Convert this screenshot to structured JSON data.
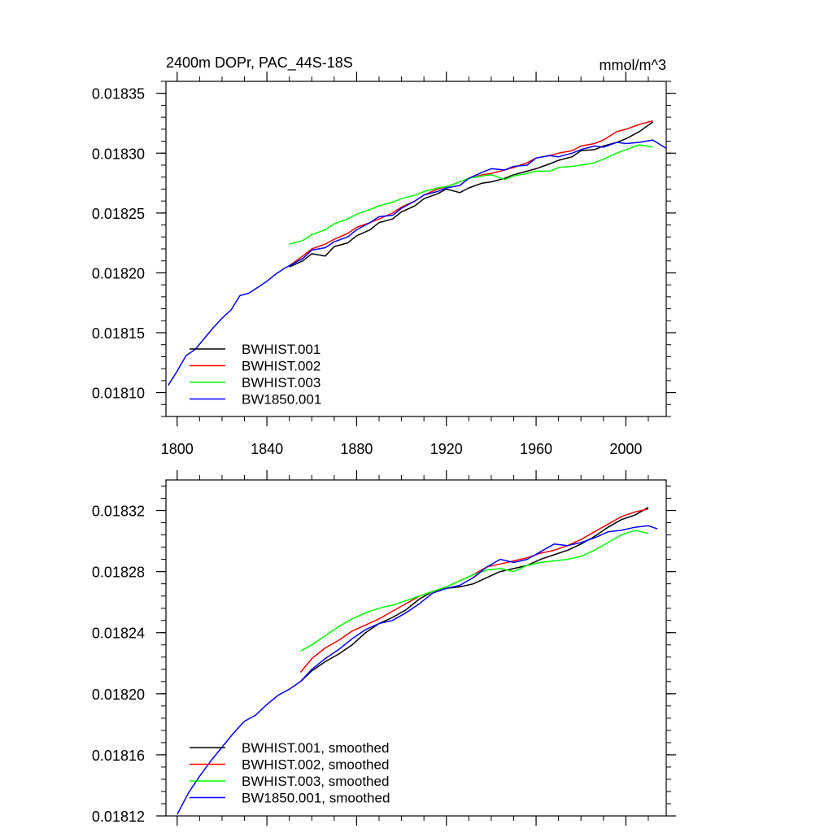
{
  "panels": {
    "top": {
      "title_left": "2400m DOPr, PAC_44S-18S",
      "title_right": "mmol/m^3"
    },
    "bottom": {}
  },
  "chart_data": [
    {
      "type": "line",
      "title": "2400m DOPr, PAC_44S-18S",
      "units": "mmol/m^3",
      "xlim": [
        1795,
        2018
      ],
      "ylim": [
        0.01808,
        0.01836
      ],
      "x_ticks": [
        1800,
        1840,
        1880,
        1920,
        1960,
        2000
      ],
      "x_tick_labels": [
        "1800",
        "1840",
        "1880",
        "1920",
        "1960",
        "2000"
      ],
      "y_ticks": [
        0.0181,
        0.01815,
        0.0182,
        0.01825,
        0.0183,
        0.01835
      ],
      "y_tick_labels": [
        "0.01810",
        "0.01815",
        "0.01820",
        "0.01825",
        "0.01830",
        "0.01835"
      ],
      "legend_position": "bottom-left",
      "series": [
        {
          "name": "BWHIST.001",
          "color": "#000000",
          "x": [
            1850,
            1856,
            1860,
            1866,
            1870,
            1876,
            1880,
            1886,
            1890,
            1896,
            1900,
            1906,
            1910,
            1916,
            1920,
            1926,
            1930,
            1936,
            1940,
            1946,
            1950,
            1956,
            1960,
            1966,
            1970,
            1976,
            1980,
            1986,
            1990,
            1996,
            2000,
            2006,
            2012
          ],
          "y": [
            0.018205,
            0.01821,
            0.018216,
            0.018214,
            0.018222,
            0.018225,
            0.018231,
            0.018236,
            0.018242,
            0.018245,
            0.018251,
            0.018256,
            0.018262,
            0.018266,
            0.01827,
            0.018267,
            0.018271,
            0.018275,
            0.018276,
            0.018279,
            0.018282,
            0.018285,
            0.018287,
            0.018291,
            0.018294,
            0.018297,
            0.018302,
            0.018303,
            0.018306,
            0.018309,
            0.018312,
            0.018318,
            0.018326
          ]
        },
        {
          "name": "BWHIST.002",
          "color": "#ff0000",
          "x": [
            1850,
            1856,
            1860,
            1866,
            1870,
            1876,
            1880,
            1886,
            1890,
            1896,
            1900,
            1906,
            1910,
            1916,
            1920,
            1926,
            1930,
            1936,
            1940,
            1946,
            1950,
            1956,
            1960,
            1966,
            1970,
            1976,
            1980,
            1986,
            1990,
            1996,
            2000,
            2006,
            2012
          ],
          "y": [
            0.018206,
            0.018214,
            0.01822,
            0.018224,
            0.018228,
            0.018233,
            0.018238,
            0.018242,
            0.018245,
            0.01825,
            0.018255,
            0.01826,
            0.018265,
            0.01827,
            0.018272,
            0.018276,
            0.018279,
            0.018282,
            0.018283,
            0.018286,
            0.018288,
            0.018292,
            0.018296,
            0.018298,
            0.0183,
            0.018302,
            0.018306,
            0.018308,
            0.018311,
            0.018318,
            0.01832,
            0.018324,
            0.018327
          ]
        },
        {
          "name": "BWHIST.003",
          "color": "#00ff00",
          "x": [
            1850,
            1856,
            1860,
            1866,
            1870,
            1876,
            1880,
            1886,
            1890,
            1896,
            1900,
            1906,
            1910,
            1916,
            1920,
            1926,
            1930,
            1936,
            1940,
            1946,
            1950,
            1956,
            1960,
            1966,
            1970,
            1976,
            1980,
            1986,
            1990,
            1996,
            2000,
            2006,
            2012
          ],
          "y": [
            0.018224,
            0.018227,
            0.018232,
            0.018236,
            0.018241,
            0.018245,
            0.018249,
            0.018253,
            0.018256,
            0.018259,
            0.018262,
            0.018265,
            0.018268,
            0.018271,
            0.018272,
            0.018276,
            0.018279,
            0.018281,
            0.018282,
            0.018278,
            0.018281,
            0.018283,
            0.018285,
            0.018285,
            0.018288,
            0.018289,
            0.01829,
            0.018292,
            0.018295,
            0.0183,
            0.018303,
            0.018307,
            0.018305
          ]
        },
        {
          "name": "BW1850.001",
          "color": "#0000ff",
          "x": [
            1796,
            1800,
            1804,
            1808,
            1812,
            1816,
            1820,
            1824,
            1828,
            1832,
            1836,
            1840,
            1844,
            1848,
            1852,
            1856,
            1860,
            1866,
            1870,
            1876,
            1880,
            1886,
            1890,
            1896,
            1900,
            1906,
            1910,
            1916,
            1920,
            1926,
            1930,
            1936,
            1940,
            1946,
            1950,
            1956,
            1960,
            1966,
            1970,
            1976,
            1980,
            1986,
            1990,
            1996,
            2000,
            2006,
            2012,
            2018
          ],
          "y": [
            0.018106,
            0.018118,
            0.018131,
            0.018136,
            0.018145,
            0.018154,
            0.018162,
            0.018169,
            0.018181,
            0.018183,
            0.018188,
            0.018193,
            0.018199,
            0.018204,
            0.018208,
            0.018212,
            0.018219,
            0.018221,
            0.018226,
            0.01823,
            0.018236,
            0.018242,
            0.018247,
            0.018248,
            0.018254,
            0.01826,
            0.018265,
            0.018268,
            0.018271,
            0.018273,
            0.018279,
            0.018284,
            0.018287,
            0.018286,
            0.018289,
            0.01829,
            0.018296,
            0.018298,
            0.018297,
            0.0183,
            0.018303,
            0.018306,
            0.018305,
            0.018309,
            0.018308,
            0.018309,
            0.018311,
            0.018304
          ]
        }
      ]
    },
    {
      "type": "line",
      "xlim": [
        1795,
        2018
      ],
      "ylim": [
        0.01812,
        0.01834
      ],
      "x_ticks": [
        1800,
        1840,
        1880,
        1920,
        1960,
        2000
      ],
      "y_ticks": [
        0.01812,
        0.01816,
        0.0182,
        0.01824,
        0.01828,
        0.01832
      ],
      "y_tick_labels": [
        "0.01812",
        "0.01816",
        "0.01820",
        "0.01824",
        "0.01828",
        "0.01832"
      ],
      "legend_position": "bottom-left",
      "series": [
        {
          "name": "BWHIST.001, smoothed",
          "color": "#000000",
          "x": [
            1855,
            1860,
            1866,
            1872,
            1878,
            1884,
            1890,
            1896,
            1902,
            1908,
            1914,
            1920,
            1926,
            1932,
            1938,
            1944,
            1950,
            1956,
            1962,
            1968,
            1974,
            1980,
            1986,
            1992,
            1998,
            2004,
            2010
          ],
          "y": [
            0.018208,
            0.018215,
            0.018221,
            0.018226,
            0.018232,
            0.01824,
            0.018246,
            0.01825,
            0.018255,
            0.018262,
            0.018267,
            0.018269,
            0.01827,
            0.018272,
            0.018276,
            0.01828,
            0.018282,
            0.018284,
            0.018288,
            0.018291,
            0.018294,
            0.018298,
            0.018303,
            0.018309,
            0.018314,
            0.018317,
            0.018322
          ]
        },
        {
          "name": "BWHIST.002, smoothed",
          "color": "#ff0000",
          "x": [
            1855,
            1860,
            1866,
            1872,
            1878,
            1884,
            1890,
            1896,
            1902,
            1908,
            1914,
            1920,
            1926,
            1932,
            1938,
            1944,
            1950,
            1956,
            1962,
            1968,
            1974,
            1980,
            1986,
            1992,
            1998,
            2004,
            2010
          ],
          "y": [
            0.018214,
            0.018223,
            0.01823,
            0.018235,
            0.018241,
            0.018245,
            0.018249,
            0.018254,
            0.018259,
            0.018264,
            0.018267,
            0.01827,
            0.018274,
            0.018278,
            0.018283,
            0.018285,
            0.018287,
            0.018289,
            0.018292,
            0.018294,
            0.018297,
            0.018301,
            0.018306,
            0.018311,
            0.018316,
            0.018319,
            0.018321
          ]
        },
        {
          "name": "BWHIST.003, smoothed",
          "color": "#00ff00",
          "x": [
            1855,
            1860,
            1866,
            1872,
            1878,
            1884,
            1890,
            1896,
            1902,
            1908,
            1914,
            1920,
            1926,
            1932,
            1938,
            1944,
            1950,
            1956,
            1962,
            1968,
            1974,
            1980,
            1986,
            1992,
            1998,
            2004,
            2010
          ],
          "y": [
            0.018228,
            0.018232,
            0.018238,
            0.018244,
            0.018249,
            0.018253,
            0.018256,
            0.018258,
            0.018261,
            0.018264,
            0.018267,
            0.01827,
            0.018274,
            0.018278,
            0.018281,
            0.018282,
            0.01828,
            0.018284,
            0.018286,
            0.018287,
            0.018288,
            0.01829,
            0.018294,
            0.018299,
            0.018304,
            0.018307,
            0.018305
          ]
        },
        {
          "name": "BW1850.001, smoothed",
          "color": "#0000ff",
          "x": [
            1800,
            1805,
            1810,
            1815,
            1820,
            1825,
            1830,
            1835,
            1840,
            1845,
            1850,
            1855,
            1860,
            1866,
            1872,
            1878,
            1884,
            1890,
            1896,
            1902,
            1908,
            1914,
            1920,
            1926,
            1932,
            1938,
            1944,
            1950,
            1956,
            1962,
            1968,
            1974,
            1980,
            1986,
            1992,
            1998,
            2004,
            2010,
            2014
          ],
          "y": [
            0.018121,
            0.018135,
            0.018146,
            0.018156,
            0.018165,
            0.018174,
            0.018182,
            0.018186,
            0.018193,
            0.018199,
            0.018203,
            0.018208,
            0.018216,
            0.018223,
            0.018229,
            0.018236,
            0.018242,
            0.018246,
            0.018248,
            0.018253,
            0.018259,
            0.018266,
            0.018269,
            0.018271,
            0.018276,
            0.018283,
            0.018288,
            0.018286,
            0.018288,
            0.018293,
            0.018298,
            0.018297,
            0.018299,
            0.018302,
            0.018306,
            0.018307,
            0.018309,
            0.01831,
            0.018308
          ]
        }
      ]
    }
  ]
}
